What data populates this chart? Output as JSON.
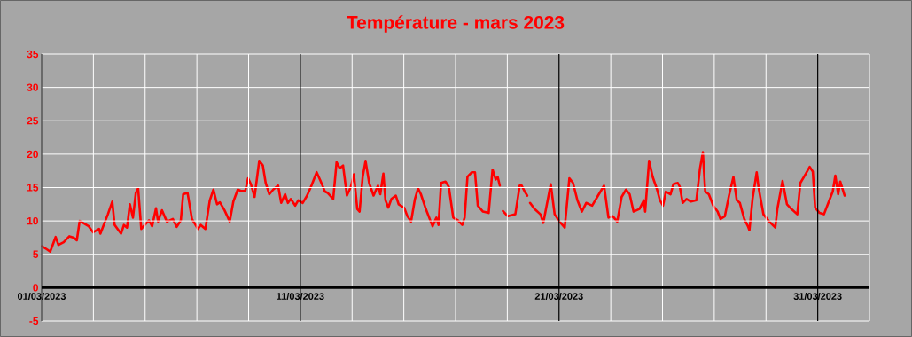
{
  "chart_data": {
    "type": "line",
    "title": "Température - mars 2023",
    "x": [
      "2023-03-01T00:14",
      "2023-03-01T05:17",
      "2023-03-01T07:55",
      "2023-03-01T12:58",
      "2023-03-01T15:36",
      "2023-03-01T20:24",
      "2023-03-02T01:41",
      "2023-03-02T05:46",
      "2023-03-02T08:38",
      "2023-03-02T11:17",
      "2023-03-02T19:41",
      "2023-03-02T23:46",
      "2023-03-03T05:17",
      "2023-03-03T06:29",
      "2023-03-03T13:26",
      "2023-03-03T17:31",
      "2023-03-03T19:41",
      "2023-03-04T01:41",
      "2023-03-04T04:19",
      "2023-03-04T07:12",
      "2023-03-04T09:50",
      "2023-03-04T12:43",
      "2023-03-04T15:22",
      "2023-03-04T17:31",
      "2023-03-04T20:24",
      "2023-03-05T03:36",
      "2023-03-05T06:29",
      "2023-03-05T10:05",
      "2023-03-05T12:00",
      "2023-03-05T15:36",
      "2023-03-05T20:10",
      "2023-03-06T01:41",
      "2023-03-06T05:17",
      "2023-03-06T09:07",
      "2023-03-06T11:17",
      "2023-03-06T15:22",
      "2023-03-06T19:26",
      "2023-03-07T00:58",
      "2023-03-07T03:36",
      "2023-03-07T07:55",
      "2023-03-07T12:00",
      "2023-03-07T15:22",
      "2023-03-07T18:43",
      "2023-03-07T21:22",
      "2023-03-08T01:41",
      "2023-03-08T06:29",
      "2023-03-08T09:50",
      "2023-03-08T13:55",
      "2023-03-08T16:48",
      "2023-03-08T20:53",
      "2023-03-08T23:31",
      "2023-03-09T02:10",
      "2023-03-09T05:31",
      "2023-03-09T09:50",
      "2023-03-09T13:12",
      "2023-03-09T15:50",
      "2023-03-09T19:12",
      "2023-03-09T22:48",
      "2023-03-10T03:22",
      "2023-03-10T06:14",
      "2023-03-10T09:50",
      "2023-03-10T12:29",
      "2023-03-10T15:07",
      "2023-03-10T19:12",
      "2023-03-10T22:05",
      "2023-03-11T02:10",
      "2023-03-11T06:14",
      "2023-03-11T10:19",
      "2023-03-11T15:07",
      "2023-03-11T18:43",
      "2023-03-11T22:48",
      "2023-03-12T01:26",
      "2023-03-12T06:29",
      "2023-03-12T09:36",
      "2023-03-12T12:29",
      "2023-03-12T15:36",
      "2023-03-12T19:12",
      "2023-03-12T22:48",
      "2023-03-13T01:41",
      "2023-03-13T04:48",
      "2023-03-13T06:58",
      "2023-03-13T09:50",
      "2023-03-13T12:29",
      "2023-03-13T15:50",
      "2023-03-13T19:55",
      "2023-03-14T00:00",
      "2023-03-14T02:10",
      "2023-03-14T05:02",
      "2023-03-14T06:58",
      "2023-03-14T09:36",
      "2023-03-14T12:29",
      "2023-03-14T16:34",
      "2023-03-14T19:12",
      "2023-03-15T00:14",
      "2023-03-15T03:22",
      "2023-03-15T06:43",
      "2023-03-15T10:19",
      "2023-03-15T13:12",
      "2023-03-15T15:50",
      "2023-03-15T20:24",
      "2023-03-16T02:38",
      "2023-03-16T06:14",
      "2023-03-16T08:10",
      "2023-03-16T10:34",
      "2023-03-16T14:38",
      "2023-03-16T17:46",
      "2023-03-16T21:50",
      "2023-03-17T02:10",
      "2023-03-17T06:14",
      "2023-03-17T08:24",
      "2023-03-17T11:02",
      "2023-03-17T15:07",
      "2023-03-17T18:00",
      "2023-03-17T20:38",
      "2023-03-18T01:26",
      "2023-03-18T06:43",
      "2023-03-18T10:19",
      "2023-03-18T13:12",
      "2023-03-18T15:07",
      "2023-03-18T17:02",
      "2023-03-18T18:29",
      "2023-03-18T19:55",
      "2023-03-19T00:29",
      "2023-03-19T07:26",
      "2023-03-19T11:31",
      "2023-03-19T12:58",
      "2023-03-19T16:34",
      "2023-03-19T18:29",
      "2023-03-19T19:41",
      "2023-03-19T21:07",
      "2023-03-20T01:12",
      "2023-03-20T06:43",
      "2023-03-20T09:22",
      "2023-03-20T13:41",
      "2023-03-20T16:19",
      "2023-03-20T19:55",
      "2023-03-21T00:29",
      "2023-03-21T05:17",
      "2023-03-21T09:36",
      "2023-03-21T12:58",
      "2023-03-21T17:02",
      "2023-03-21T21:07",
      "2023-03-22T01:12",
      "2023-03-22T06:43",
      "2023-03-22T12:14",
      "2023-03-22T17:46",
      "2023-03-22T21:50",
      "2023-03-23T01:55",
      "2023-03-23T06:00",
      "2023-03-23T10:05",
      "2023-03-23T14:10",
      "2023-03-23T17:31",
      "2023-03-23T21:07",
      "2023-03-24T02:38",
      "2023-03-24T06:43",
      "2023-03-24T07:55",
      "2023-03-24T11:31",
      "2023-03-24T14:53",
      "2023-03-24T18:58",
      "2023-03-24T21:36",
      "2023-03-25T00:29",
      "2023-03-25T03:07",
      "2023-03-25T07:26",
      "2023-03-25T10:05",
      "2023-03-25T14:10",
      "2023-03-25T16:05",
      "2023-03-25T18:43",
      "2023-03-25T22:19",
      "2023-03-26T02:24",
      "2023-03-26T07:26",
      "2023-03-26T10:48",
      "2023-03-26T13:26",
      "2023-03-26T15:36",
      "2023-03-26T18:58",
      "2023-03-26T23:02",
      "2023-03-27T03:07",
      "2023-03-27T05:46",
      "2023-03-27T09:50",
      "2023-03-27T13:41",
      "2023-03-27T17:46",
      "2023-03-27T20:53",
      "2023-03-27T23:46",
      "2023-03-28T03:50",
      "2023-03-28T07:12",
      "2023-03-28T08:38",
      "2023-03-28T11:31",
      "2023-03-28T15:22",
      "2023-03-28T17:02",
      "2023-03-28T21:36",
      "2023-03-29T03:07",
      "2023-03-29T08:38",
      "2023-03-29T10:34",
      "2023-03-29T15:22",
      "2023-03-29T19:26",
      "2023-03-29T23:31",
      "2023-03-30T05:02",
      "2023-03-30T07:55",
      "2023-03-30T12:43",
      "2023-03-30T16:34",
      "2023-03-30T19:26",
      "2023-03-30T21:36",
      "2023-03-31T01:41",
      "2023-03-31T05:46",
      "2023-03-31T09:50",
      "2023-03-31T13:55",
      "2023-03-31T16:19",
      "2023-03-31T18:58",
      "2023-03-31T20:53",
      "2023-04-01T00:58"
    ],
    "values": [
      6.2,
      5.7,
      5.4,
      7.6,
      6.4,
      6.8,
      7.7,
      7.5,
      7.1,
      10,
      9.2,
      8.3,
      8.8,
      8.1,
      11,
      12.9,
      9.4,
      8.1,
      9.4,
      9,
      12.5,
      10.5,
      14.2,
      14.9,
      8.8,
      10.1,
      9.2,
      11.9,
      9.9,
      11.6,
      9.9,
      10.3,
      9.1,
      10.1,
      14,
      14.2,
      10.3,
      8.8,
      9.4,
      8.8,
      13.1,
      14.7,
      12.5,
      12.8,
      11.6,
      9.9,
      12.9,
      14.7,
      14.5,
      14.5,
      16.4,
      15.5,
      13.6,
      19,
      18.3,
      15.7,
      14,
      14.7,
      15.3,
      12.7,
      14,
      12.7,
      13.3,
      12.3,
      13.1,
      12.7,
      13.8,
      15.3,
      17.3,
      16,
      14.4,
      14.2,
      13.3,
      18.8,
      17.9,
      18.3,
      13.8,
      15.1,
      17,
      11.8,
      11.4,
      16.6,
      19,
      15.7,
      13.8,
      15.3,
      14,
      17.1,
      13.1,
      12,
      13.3,
      13.8,
      12.5,
      12,
      10.7,
      9.9,
      13.3,
      14.9,
      14,
      11.8,
      9.2,
      10.5,
      9.4,
      15.7,
      15.9,
      15.1,
      10.5,
      10.1,
      9.4,
      10.5,
      16.6,
      17.3,
      17.3,
      12.3,
      11.4,
      11.2,
      17.7,
      16.2,
      16.6,
      15.3,
      null,
      11.5,
      10.7,
      11,
      15.3,
      15.4,
      14.3,
      13.8,
      null,
      12.7,
      11.8,
      11,
      9.7,
      13.3,
      15.5,
      11,
      9.9,
      9,
      16.4,
      15.7,
      13.1,
      11.4,
      12.7,
      12.3,
      13.8,
      15.3,
      10.5,
      10.7,
      9.9,
      13.6,
      14.7,
      14,
      11.4,
      11.8,
      13.1,
      11.4,
      19,
      16.6,
      14.7,
      13.1,
      12.3,
      14.4,
      14,
      15.5,
      15.7,
      15.1,
      12.7,
      13.3,
      12.9,
      13.1,
      17.9,
      20.3,
      14.4,
      14,
      12.3,
      11.4,
      10.3,
      10.7,
      13.8,
      16.6,
      13.1,
      12.7,
      10.3,
      9.2,
      8.6,
      13.3,
      17.3,
      15.1,
      11,
      9.9,
      9,
      11.8,
      16,
      12.5,
      11.8,
      11,
      15.7,
      17,
      18.1,
      17.4,
      12,
      11.2,
      11,
      12.7,
      14.4,
      16.8,
      14,
      15.9,
      13.8
    ],
    "color": "#ff0000",
    "xlim": [
      "2023-03-01",
      "2023-04-02"
    ],
    "ylim": [
      -5,
      35
    ],
    "xticks": [
      {
        "value": "2023-03-01",
        "label": "01/03/2023"
      },
      {
        "value": "2023-03-03",
        "label": null
      },
      {
        "value": "2023-03-05",
        "label": null
      },
      {
        "value": "2023-03-07",
        "label": null
      },
      {
        "value": "2023-03-09",
        "label": null
      },
      {
        "value": "2023-03-11",
        "label": "11/03/2023"
      },
      {
        "value": "2023-03-13",
        "label": null
      },
      {
        "value": "2023-03-15",
        "label": null
      },
      {
        "value": "2023-03-17",
        "label": null
      },
      {
        "value": "2023-03-19",
        "label": null
      },
      {
        "value": "2023-03-21",
        "label": "21/03/2023"
      },
      {
        "value": "2023-03-23",
        "label": null
      },
      {
        "value": "2023-03-25",
        "label": null
      },
      {
        "value": "2023-03-27",
        "label": null
      },
      {
        "value": "2023-03-29",
        "label": null
      },
      {
        "value": "2023-03-31",
        "label": "31/03/2023"
      },
      {
        "value": "2023-04-02",
        "label": null
      }
    ],
    "yticks": [
      -5,
      0,
      5,
      10,
      15,
      20,
      25,
      30,
      35
    ],
    "grid": true
  }
}
